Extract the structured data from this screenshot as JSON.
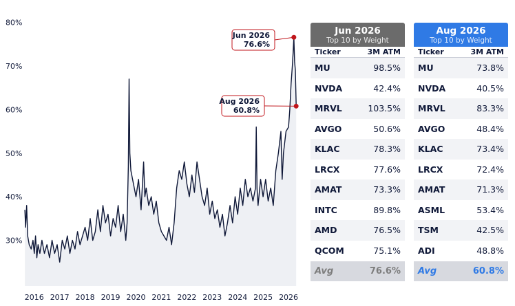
{
  "chart_data": {
    "type": "line",
    "title": "",
    "xlabel": "",
    "ylabel": "",
    "x_ticks": [
      "2016",
      "2017",
      "2018",
      "2019",
      "2020",
      "2021",
      "2022",
      "2023",
      "2024",
      "2025",
      "2026"
    ],
    "y_ticks": [
      "30%",
      "40%",
      "50%",
      "60%",
      "70%",
      "80%"
    ],
    "xlim": [
      2015.6,
      2026.35
    ],
    "ylim": [
      19.5,
      82
    ],
    "series": [
      {
        "points": [
          [
            2015.63,
            37
          ],
          [
            2015.66,
            33
          ],
          [
            2015.7,
            38
          ],
          [
            2015.74,
            31
          ],
          [
            2015.8,
            29
          ],
          [
            2015.88,
            28
          ],
          [
            2015.95,
            30
          ],
          [
            2016.0,
            27
          ],
          [
            2016.05,
            31
          ],
          [
            2016.1,
            26
          ],
          [
            2016.15,
            29
          ],
          [
            2016.22,
            27
          ],
          [
            2016.3,
            30
          ],
          [
            2016.4,
            27
          ],
          [
            2016.5,
            29
          ],
          [
            2016.6,
            26
          ],
          [
            2016.7,
            30
          ],
          [
            2016.8,
            27
          ],
          [
            2016.9,
            29
          ],
          [
            2017.0,
            25
          ],
          [
            2017.1,
            30
          ],
          [
            2017.2,
            28
          ],
          [
            2017.3,
            31
          ],
          [
            2017.4,
            27
          ],
          [
            2017.5,
            30
          ],
          [
            2017.6,
            28
          ],
          [
            2017.7,
            32
          ],
          [
            2017.8,
            29
          ],
          [
            2017.9,
            31
          ],
          [
            2018.0,
            33
          ],
          [
            2018.1,
            30
          ],
          [
            2018.2,
            35
          ],
          [
            2018.3,
            30
          ],
          [
            2018.4,
            32
          ],
          [
            2018.5,
            37
          ],
          [
            2018.6,
            32
          ],
          [
            2018.7,
            38
          ],
          [
            2018.8,
            34
          ],
          [
            2018.9,
            36
          ],
          [
            2019.0,
            31
          ],
          [
            2019.1,
            35
          ],
          [
            2019.2,
            33
          ],
          [
            2019.3,
            38
          ],
          [
            2019.4,
            32
          ],
          [
            2019.5,
            36
          ],
          [
            2019.6,
            30
          ],
          [
            2019.65,
            34
          ],
          [
            2019.7,
            47
          ],
          [
            2019.73,
            67
          ],
          [
            2019.76,
            50
          ],
          [
            2019.8,
            46
          ],
          [
            2019.9,
            43
          ],
          [
            2020.0,
            40
          ],
          [
            2020.1,
            44
          ],
          [
            2020.2,
            37
          ],
          [
            2020.3,
            48
          ],
          [
            2020.35,
            40
          ],
          [
            2020.4,
            42
          ],
          [
            2020.5,
            38
          ],
          [
            2020.6,
            40
          ],
          [
            2020.7,
            36
          ],
          [
            2020.8,
            39
          ],
          [
            2020.9,
            34
          ],
          [
            2021.0,
            32
          ],
          [
            2021.1,
            31
          ],
          [
            2021.2,
            30
          ],
          [
            2021.3,
            33
          ],
          [
            2021.4,
            29
          ],
          [
            2021.5,
            34
          ],
          [
            2021.6,
            42
          ],
          [
            2021.7,
            46
          ],
          [
            2021.8,
            44
          ],
          [
            2021.9,
            48
          ],
          [
            2022.0,
            43
          ],
          [
            2022.1,
            40
          ],
          [
            2022.2,
            45
          ],
          [
            2022.3,
            41
          ],
          [
            2022.4,
            48
          ],
          [
            2022.5,
            44
          ],
          [
            2022.6,
            40
          ],
          [
            2022.7,
            38
          ],
          [
            2022.8,
            42
          ],
          [
            2022.9,
            36
          ],
          [
            2023.0,
            39
          ],
          [
            2023.1,
            35
          ],
          [
            2023.2,
            37
          ],
          [
            2023.3,
            33
          ],
          [
            2023.4,
            36
          ],
          [
            2023.5,
            31
          ],
          [
            2023.6,
            34
          ],
          [
            2023.7,
            38
          ],
          [
            2023.8,
            34
          ],
          [
            2023.9,
            40
          ],
          [
            2024.0,
            36
          ],
          [
            2024.1,
            42
          ],
          [
            2024.2,
            38
          ],
          [
            2024.3,
            44
          ],
          [
            2024.4,
            40
          ],
          [
            2024.5,
            42
          ],
          [
            2024.6,
            39
          ],
          [
            2024.7,
            42
          ],
          [
            2024.73,
            56
          ],
          [
            2024.76,
            42
          ],
          [
            2024.8,
            38
          ],
          [
            2024.9,
            44
          ],
          [
            2025.0,
            40
          ],
          [
            2025.1,
            44
          ],
          [
            2025.2,
            39
          ],
          [
            2025.3,
            42
          ],
          [
            2025.4,
            38
          ],
          [
            2025.5,
            46
          ],
          [
            2025.6,
            50
          ],
          [
            2025.7,
            55
          ],
          [
            2025.75,
            44
          ],
          [
            2025.8,
            50
          ],
          [
            2025.9,
            55
          ],
          [
            2026.0,
            56
          ],
          [
            2026.05,
            60
          ],
          [
            2026.1,
            66
          ],
          [
            2026.15,
            70
          ],
          [
            2026.18,
            73
          ],
          [
            2026.21,
            76.6
          ],
          [
            2026.24,
            71
          ],
          [
            2026.27,
            69
          ],
          [
            2026.3,
            60.8
          ]
        ]
      }
    ],
    "annotations": [
      {
        "label": "Jun 2026",
        "value": "76.6%",
        "x": 2026.21,
        "y": 76.6
      },
      {
        "label": "Aug 2026",
        "value": "60.8%",
        "x": 2026.3,
        "y": 60.8
      }
    ],
    "colors": {
      "line": "#0f1838",
      "fill": "#eef0f4",
      "marker": "#c0151b",
      "annotation_border": "#c0151b"
    }
  },
  "tables": [
    {
      "title": "Jun 2026",
      "subtitle": "Top 10 by Weight",
      "col_ticker": "Ticker",
      "col_atm": "3M ATM",
      "rows": [
        [
          "MU",
          "98.5%"
        ],
        [
          "NVDA",
          "42.4%"
        ],
        [
          "MRVL",
          "103.5%"
        ],
        [
          "AVGO",
          "50.6%"
        ],
        [
          "KLAC",
          "78.3%"
        ],
        [
          "LRCX",
          "77.6%"
        ],
        [
          "AMAT",
          "73.3%"
        ],
        [
          "INTC",
          "89.8%"
        ],
        [
          "AMD",
          "76.5%"
        ],
        [
          "QCOM",
          "75.1%"
        ]
      ],
      "avg_label": "Avg",
      "avg_value": "76.6%",
      "header_color": "#6b6b6b"
    },
    {
      "title": "Aug 2026",
      "subtitle": "Top 10 by Weight",
      "col_ticker": "Ticker",
      "col_atm": "3M ATM",
      "rows": [
        [
          "MU",
          "73.8%"
        ],
        [
          "NVDA",
          "40.5%"
        ],
        [
          "MRVL",
          "83.3%"
        ],
        [
          "AVGO",
          "48.4%"
        ],
        [
          "KLAC",
          "73.4%"
        ],
        [
          "LRCX",
          "72.4%"
        ],
        [
          "AMAT",
          "71.3%"
        ],
        [
          "ASML",
          "53.4%"
        ],
        [
          "TSM",
          "42.5%"
        ],
        [
          "ADI",
          "48.8%"
        ]
      ],
      "avg_label": "Avg",
      "avg_value": "60.8%",
      "header_color": "#2f7ae5"
    }
  ]
}
